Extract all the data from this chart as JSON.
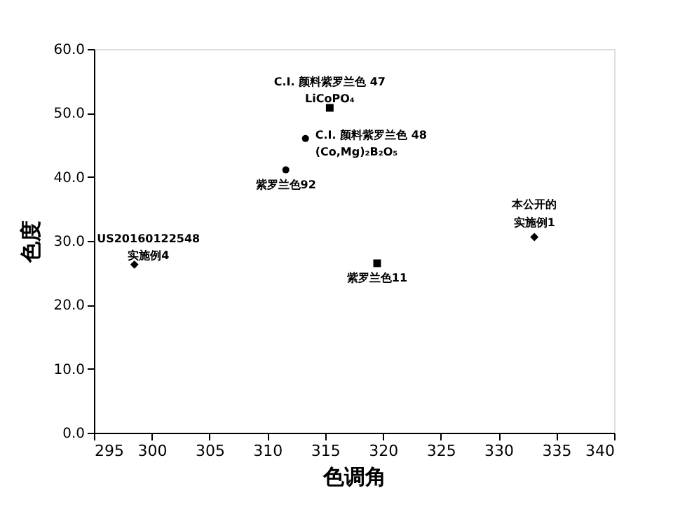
{
  "chart_data": {
    "type": "scatter",
    "xlabel": "色调角",
    "ylabel": "色度",
    "series": [
      {
        "color": "#000000",
        "marker": "diamond",
        "x": [
          298.5,
          333.1
        ],
        "values": [
          26.3,
          30.6
        ]
      },
      {
        "color": "#000000",
        "marker": "square",
        "x": [
          315.4,
          319.5
        ],
        "values": [
          50.8,
          26.5
        ]
      },
      {
        "color": "#000000",
        "marker": "circle",
        "x": [
          313.3,
          311.6
        ],
        "values": [
          46.0,
          41.1
        ]
      }
    ],
    "annotations": [
      {
        "text": "US20160122548\n实施例4",
        "x": 298.5,
        "y": 26.3
      },
      {
        "text": "C.I. 颜料紫罗兰色 47\nLiCoPO₄",
        "x": 315.4,
        "y": 50.8
      },
      {
        "text": "C.I. 颜料紫罗兰色 48\n(Co,Mg)₂B₂O₅",
        "x": 313.3,
        "y": 46.0
      },
      {
        "text": "紫罗兰色92",
        "x": 311.6,
        "y": 41.1
      },
      {
        "text": "紫罗兰色11",
        "x": 319.5,
        "y": 26.5
      },
      {
        "text": "本公开的",
        "x": 333.1,
        "y": 30.6
      },
      {
        "text": "实施例1",
        "x": 333.1,
        "y": 30.6
      }
    ],
    "xlim": [
      295,
      340
    ],
    "xticks": [
      295,
      300,
      305,
      310,
      315,
      320,
      325,
      330,
      335,
      340
    ],
    "ylim": [
      0,
      60
    ],
    "yticks": [
      {
        "value": 0,
        "label": "0.0"
      },
      {
        "value": 10,
        "label": "10.0"
      },
      {
        "value": 20,
        "label": "20.0"
      },
      {
        "value": 30,
        "label": "30.0"
      },
      {
        "value": 40,
        "label": "40.0"
      },
      {
        "value": 50,
        "label": "50.0"
      },
      {
        "value": 60,
        "label": "60.0"
      }
    ],
    "grid": false
  }
}
